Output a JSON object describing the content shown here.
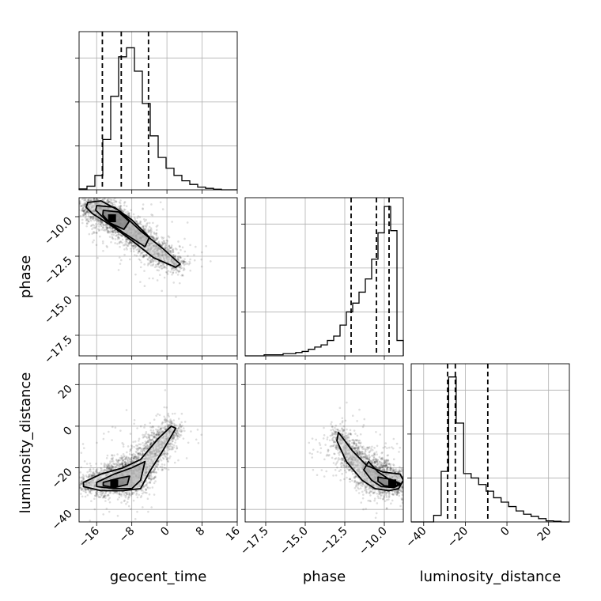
{
  "chart_data": {
    "type": "corner",
    "parameters": [
      "geocent_time",
      "phase",
      "luminosity_distance"
    ],
    "axis_labels": {
      "geocent_time": "geocent_time",
      "phase": "phase",
      "luminosity_distance": "luminosity_distance"
    },
    "ranges": {
      "geocent_time": [
        -20,
        16
      ],
      "phase": [
        -18.8,
        -8.8
      ],
      "luminosity_distance": [
        -46,
        30
      ]
    },
    "ticks": {
      "geocent_time": [
        -16,
        -8,
        0,
        8,
        16
      ],
      "phase": [
        -17.5,
        -15.0,
        -12.5,
        -10.0
      ],
      "luminosity_distance": [
        -40,
        -20,
        0,
        20
      ]
    },
    "tick_labels": {
      "geocent_time": [
        "−16",
        "−8",
        "0",
        "8",
        "16"
      ],
      "phase": [
        "−17.5",
        "−15.0",
        "−12.5",
        "−10.0"
      ],
      "luminosity_distance": [
        "−40",
        "−20",
        "0",
        "20"
      ]
    },
    "grid": true,
    "histograms": {
      "geocent_time": {
        "edges": [
          -20,
          -18.2,
          -16.4,
          -14.6,
          -12.8,
          -11,
          -9.2,
          -7.4,
          -5.6,
          -3.8,
          -2,
          -0.2,
          1.6,
          3.4,
          5.2,
          7,
          8.8,
          10.6,
          12.4,
          14.2,
          16
        ],
        "counts": [
          0.5,
          2,
          8,
          28,
          52,
          74,
          79,
          66,
          48,
          30,
          18,
          12,
          8,
          5,
          3,
          1.5,
          0.8,
          0.3,
          0,
          0
        ],
        "ymax": 88,
        "quantiles": [
          -14.7,
          -10.4,
          -4.2
        ]
      },
      "phase": {
        "edges": [
          -18.8,
          -18.4,
          -18,
          -17.6,
          -17.2,
          -16.8,
          -16.4,
          -16,
          -15.6,
          -15.2,
          -14.8,
          -14.4,
          -14,
          -13.6,
          -13.2,
          -12.8,
          -12.4,
          -12,
          -11.6,
          -11.2,
          -10.8,
          -10.4,
          -10,
          -9.6,
          -9.2,
          -8.8
        ],
        "counts": [
          0,
          0,
          0,
          0.5,
          0.5,
          0.5,
          1,
          1,
          1.5,
          2,
          3,
          4,
          5,
          7,
          9,
          14,
          20,
          24,
          29,
          35,
          44,
          56,
          68,
          57,
          7
        ],
        "ymax": 72,
        "quantiles": [
          -12.1,
          -10.5,
          -9.7
        ]
      },
      "luminosity_distance": {
        "edges": [
          -46,
          -42.4,
          -38.8,
          -35.2,
          -31.6,
          -28,
          -24.4,
          -20.8,
          -17.2,
          -13.6,
          -10,
          -6.4,
          -2.8,
          0.8,
          4.4,
          8,
          11.6,
          15.2,
          18.8,
          22.4,
          26,
          30
        ],
        "counts": [
          0,
          0,
          0,
          3,
          23,
          66,
          45,
          22,
          20,
          17,
          14,
          11,
          9,
          7,
          5,
          3.5,
          2.5,
          1.5,
          0.5,
          0.3,
          0
        ],
        "ymax": 72,
        "quantiles": [
          -28.5,
          -24.8,
          -9.2
        ]
      }
    },
    "contours": {
      "phase_vs_geocent_time": [
        [
          [
            -18,
            -9.1
          ],
          [
            -15,
            -9.0
          ],
          [
            -11,
            -9.6
          ],
          [
            -6,
            -10.9
          ],
          [
            -1,
            -12.0
          ],
          [
            3,
            -13.0
          ],
          [
            2,
            -13.2
          ],
          [
            -3,
            -12.6
          ],
          [
            -8,
            -11.5
          ],
          [
            -13,
            -10.5
          ],
          [
            -17,
            -9.8
          ],
          [
            -18.4,
            -9.4
          ],
          [
            -18,
            -9.1
          ]
        ],
        [
          [
            -16,
            -9.3
          ],
          [
            -12,
            -9.4
          ],
          [
            -8,
            -10.2
          ],
          [
            -4,
            -11.3
          ],
          [
            -5,
            -11.9
          ],
          [
            -10,
            -11.0
          ],
          [
            -14,
            -10.2
          ],
          [
            -16.2,
            -9.6
          ],
          [
            -16,
            -9.3
          ]
        ],
        [
          [
            -14.5,
            -9.6
          ],
          [
            -11,
            -9.7
          ],
          [
            -8.6,
            -10.3
          ],
          [
            -9.8,
            -10.8
          ],
          [
            -13,
            -10.4
          ],
          [
            -14.6,
            -9.9
          ],
          [
            -14.5,
            -9.6
          ]
        ]
      ],
      "luminosity_distance_vs_geocent_time": [
        [
          [
            -19,
            -27
          ],
          [
            -15,
            -23
          ],
          [
            -10,
            -20
          ],
          [
            -6,
            -16
          ],
          [
            -2,
            -6
          ],
          [
            1,
            0
          ],
          [
            2,
            -1
          ],
          [
            -1,
            -12
          ],
          [
            -4,
            -22
          ],
          [
            -6,
            -30
          ],
          [
            -10,
            -31
          ],
          [
            -15,
            -31
          ],
          [
            -19,
            -29
          ],
          [
            -19,
            -27
          ]
        ],
        [
          [
            -16,
            -27
          ],
          [
            -12,
            -23
          ],
          [
            -8,
            -20
          ],
          [
            -5,
            -17
          ],
          [
            -6,
            -26
          ],
          [
            -8,
            -30
          ],
          [
            -12,
            -30
          ],
          [
            -16,
            -29
          ],
          [
            -16,
            -27
          ]
        ],
        [
          [
            -14.5,
            -27
          ],
          [
            -11,
            -25
          ],
          [
            -8.5,
            -24
          ],
          [
            -9,
            -28
          ],
          [
            -12,
            -29.5
          ],
          [
            -14.5,
            -28.5
          ],
          [
            -14.5,
            -27
          ]
        ]
      ],
      "luminosity_distance_vs_phase": [
        [
          [
            -12.9,
            -3
          ],
          [
            -12,
            -12
          ],
          [
            -11.1,
            -19
          ],
          [
            -10.1,
            -22
          ],
          [
            -9.0,
            -23
          ],
          [
            -8.8,
            -26
          ],
          [
            -9.1,
            -30
          ],
          [
            -9.7,
            -31
          ],
          [
            -10.6,
            -30
          ],
          [
            -11.4,
            -26
          ],
          [
            -12.4,
            -17
          ],
          [
            -13.0,
            -7
          ],
          [
            -12.9,
            -3
          ]
        ],
        [
          [
            -11.0,
            -17
          ],
          [
            -10.4,
            -22
          ],
          [
            -9.6,
            -26
          ],
          [
            -9.0,
            -28
          ],
          [
            -9.4,
            -29.5
          ],
          [
            -10.2,
            -29
          ],
          [
            -10.8,
            -26
          ],
          [
            -11.3,
            -21
          ],
          [
            -11.0,
            -17
          ]
        ],
        [
          [
            -10.4,
            -24.5
          ],
          [
            -9.6,
            -25.5
          ],
          [
            -9.0,
            -27.5
          ],
          [
            -9.4,
            -29
          ],
          [
            -10.0,
            -28.6
          ],
          [
            -10.4,
            -26.5
          ],
          [
            -10.4,
            -24.5
          ]
        ]
      ]
    },
    "density_cores": {
      "phase_vs_geocent_time": [
        -12.5,
        -10.1
      ],
      "luminosity_distance_vs_geocent_time": [
        -12,
        -27.5
      ],
      "luminosity_distance_vs_phase": [
        -9.5,
        -27.5
      ]
    }
  }
}
